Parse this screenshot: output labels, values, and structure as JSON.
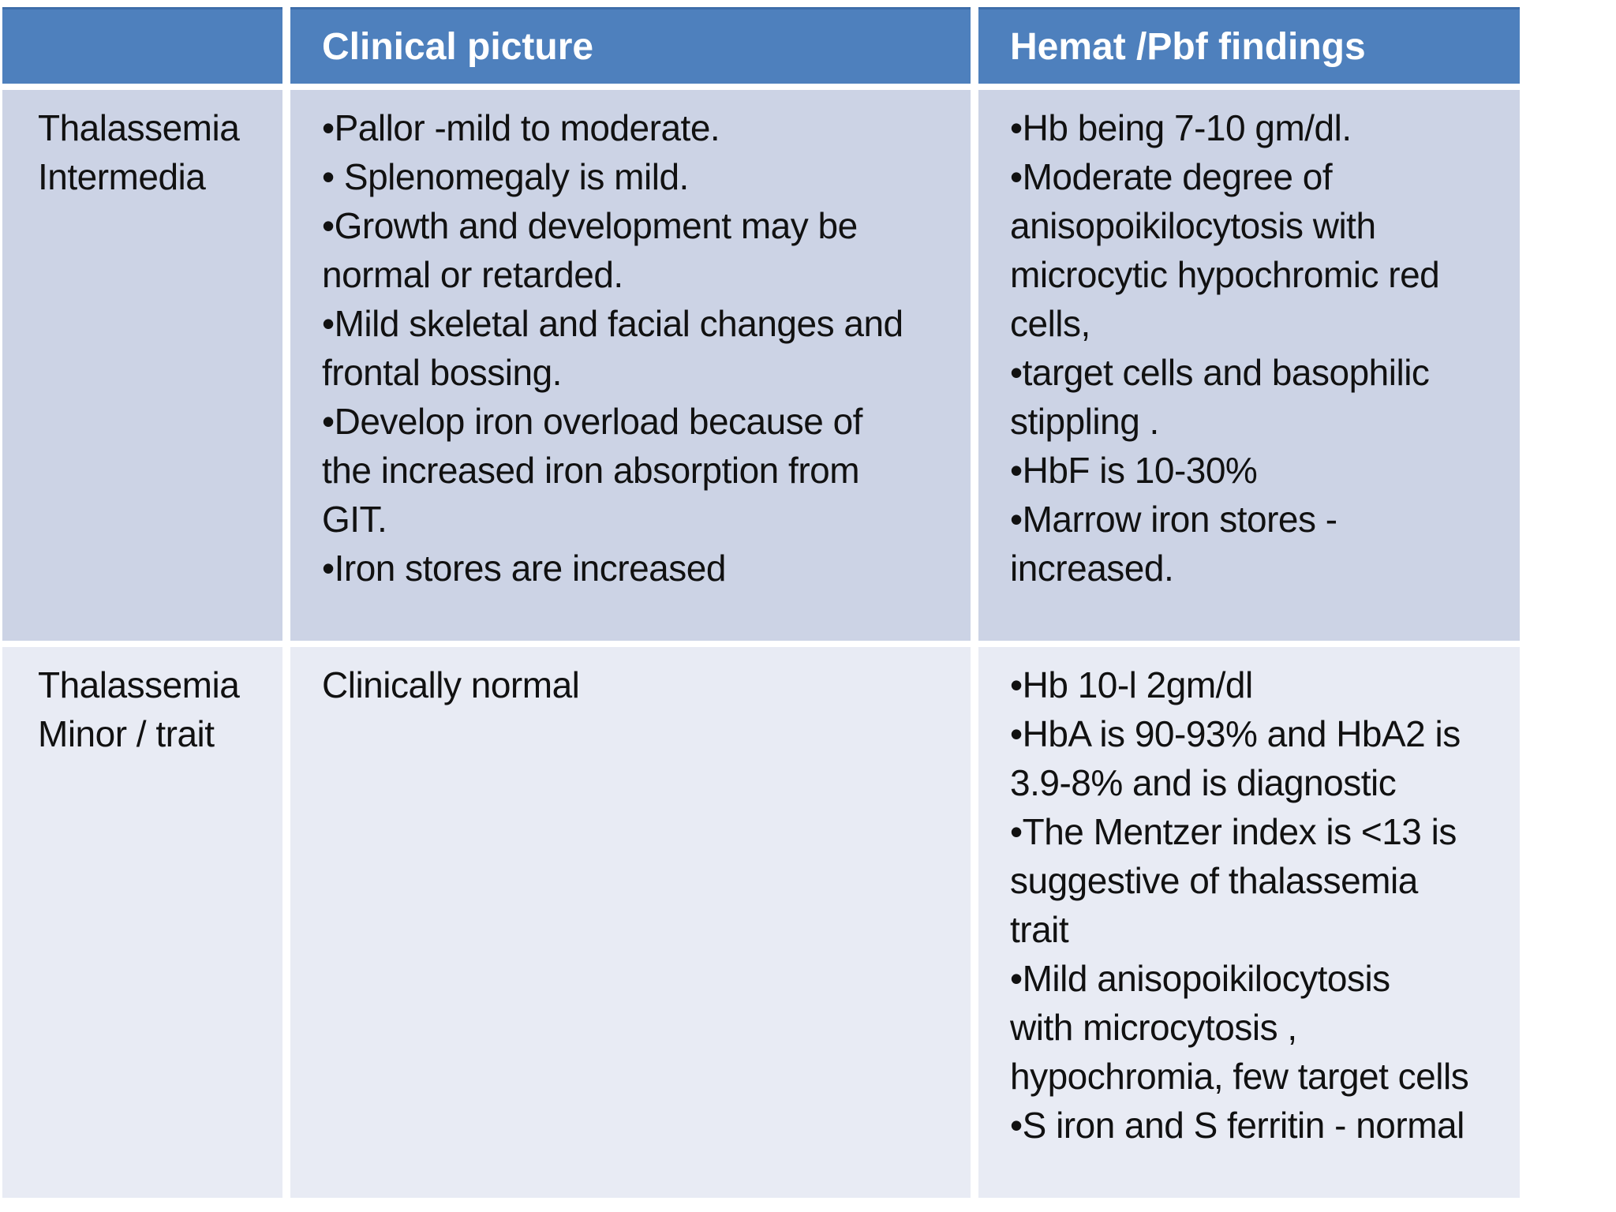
{
  "table": {
    "header": {
      "blank": "",
      "clinical": "Clinical picture",
      "hemat": "Hemat /Pbf findings"
    },
    "rows": [
      {
        "label": "Thalassemia\nIntermedia",
        "clinical": [
          "•Pallor -mild to moderate.",
          "• Splenomegaly is mild.",
          "•Growth and development may be\nnormal or retarded.",
          "•Mild skeletal and facial changes and\nfrontal bossing.",
          "•Develop iron overload because of\nthe increased iron absorption from\nGIT.",
          "•Iron stores are increased"
        ],
        "hemat": [
          "•Hb being 7-10 gm/dl.",
          "•Moderate degree of\nanisopoikilocytosis with\nmicrocytic hypochromic red\ncells,",
          "•target cells and basophilic\nstippling .",
          "•HbF is 10-30%",
          "•Marrow iron stores -\nincreased."
        ]
      },
      {
        "label": "Thalassemia\nMinor / trait",
        "clinical": [
          "Clinically normal"
        ],
        "hemat": [
          "•Hb 10-l 2gm/dl",
          "•HbA is 90-93% and HbA2 is\n3.9-8% and is diagnostic",
          "•The Mentzer index is <13 is\nsuggestive of thalassemia\ntrait",
          "•Mild anisopoikilocytosis\nwith microcytosis ,\nhypochromia, few target cells",
          "•S iron and S ferritin - normal"
        ]
      }
    ]
  },
  "colors": {
    "page_bg": "#ffffff",
    "header_bg": "#4e80bd",
    "header_border": "#3e6da9",
    "header_text": "#ffffff",
    "row1_bg": "#ccd3e5",
    "row2_bg": "#e8ebf4",
    "body_text": "#111111"
  }
}
